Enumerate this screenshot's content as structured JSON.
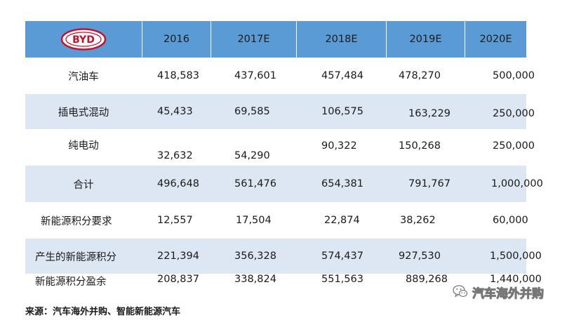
{
  "logo_text": "BYD",
  "header": {
    "years": [
      "2016",
      "2017E",
      "2018E",
      "2019E",
      "2020E"
    ]
  },
  "rows": [
    {
      "label": "汽油车",
      "values": [
        "418,583",
        "437,601",
        "457,484",
        "478,270",
        "500,000"
      ]
    },
    {
      "label": "插电式混动",
      "values": [
        "45,433",
        "69,585",
        "106,575",
        "163,229",
        "250,000"
      ]
    },
    {
      "label": "纯电动",
      "values": [
        "32,632",
        "54,290",
        "90,322",
        "150,268",
        "250,000"
      ]
    },
    {
      "label": "合计",
      "values": [
        "496,648",
        "561,476",
        "654,381",
        "791,767",
        "1,000,000"
      ]
    },
    {
      "label": "新能源积分要求",
      "values": [
        "12,557",
        "17,504",
        "22,874",
        "38,262",
        "60,000"
      ]
    },
    {
      "label": "产生的新能源积分",
      "values": [
        "221,394",
        "356,328",
        "574,437",
        "927,530",
        "1,500,000"
      ]
    },
    {
      "label": "新能源积分盈余",
      "values": [
        "208,837",
        "338,824",
        "551,563",
        "889,268",
        "1,440,000"
      ]
    }
  ],
  "source": "来源：汽车海外并购、智能新能源汽车",
  "watermark": "汽车海外并购",
  "colors": {
    "header": "#5b9bd5",
    "band": "#dde6f3",
    "logo_red": "#c8102e"
  }
}
